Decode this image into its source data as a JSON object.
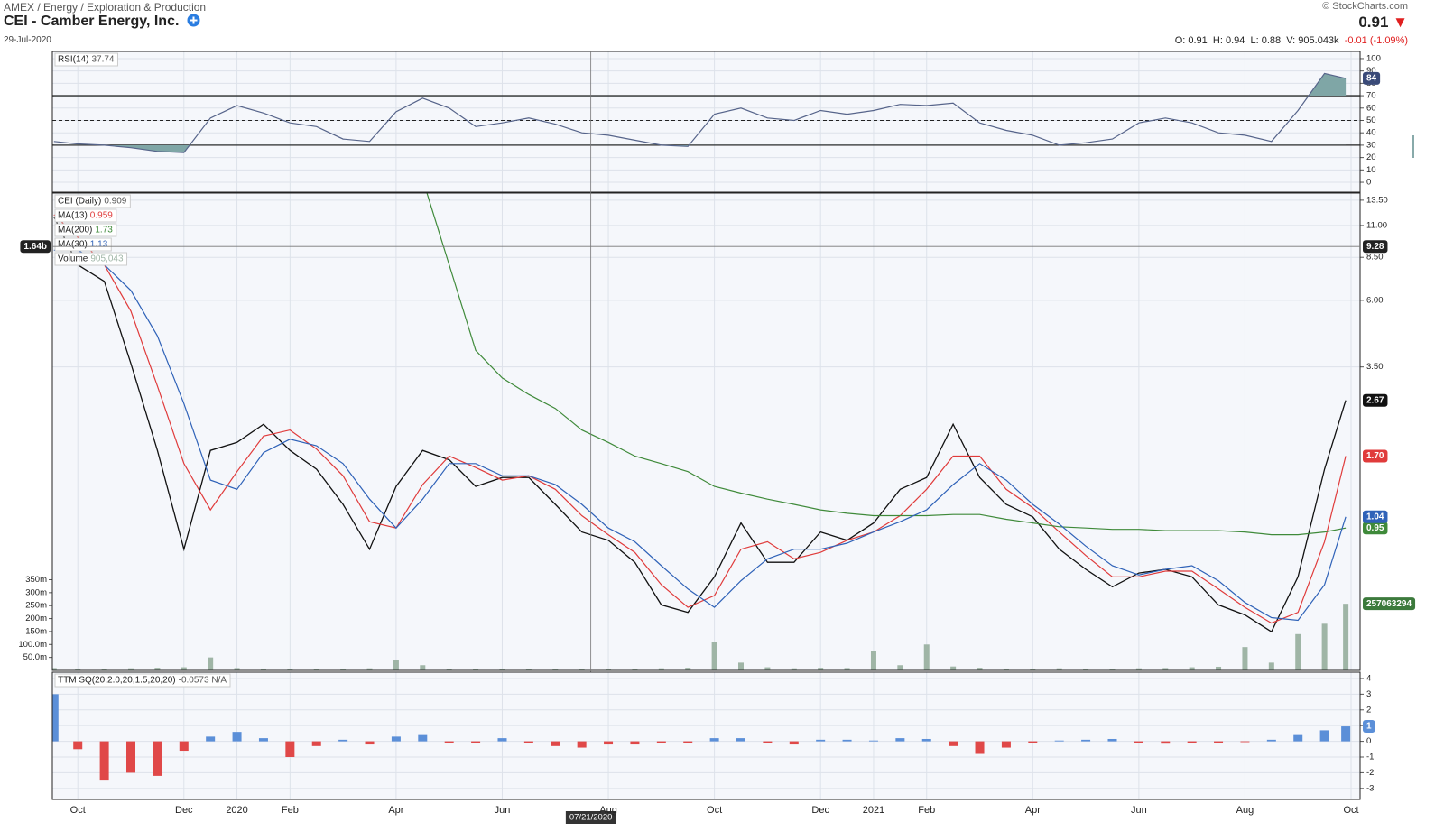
{
  "header": {
    "path": "AMEX / Energy / Exploration & Production",
    "title": "CEI - Camber Energy, Inc.",
    "date": "29-Jul-2020",
    "copyright": "© StockCharts.com",
    "last": "0.91",
    "ohlc": [
      "O: 0.91",
      "H: 0.94",
      "L: 0.88",
      "V: 905.043k"
    ],
    "change": "-0.01 (-1.09%)"
  },
  "chart_data": [
    {
      "type": "line",
      "x": [
        -0.45,
        0,
        0.5,
        1,
        1.5,
        2,
        2.5,
        3,
        3.5,
        4,
        4.5,
        5,
        5.5,
        6,
        6.5,
        7,
        7.5,
        8,
        8.5,
        9,
        9.5,
        10,
        10.5,
        11,
        11.5,
        12,
        12.5,
        13,
        13.5,
        14,
        14.5,
        15,
        15.5,
        16,
        16.5,
        17,
        17.5,
        18,
        18.5,
        19,
        19.5,
        20,
        20.5,
        21,
        21.5,
        22,
        22.5,
        23,
        23.5,
        23.9
      ],
      "xlim": [
        -0.48,
        24.17
      ],
      "ylim": [
        -8,
        105.8
      ],
      "yticks": [
        0,
        10,
        20,
        30,
        40,
        50,
        60,
        70,
        80,
        90,
        100
      ],
      "levels": [
        30,
        50,
        70
      ],
      "fill_color": "#7fa6a6",
      "series": [
        {
          "name": "RSI(14)",
          "readout": "37.74",
          "color": "#56648a",
          "last_label": "84",
          "badge_color": "#3a4a78",
          "values": [
            33,
            31,
            30,
            28,
            25,
            24,
            52,
            62,
            56,
            48,
            45,
            35,
            33,
            57,
            68,
            60,
            45,
            48,
            52,
            47,
            40,
            38,
            34,
            30,
            29,
            55,
            60,
            52,
            50,
            58,
            55,
            58,
            63,
            62,
            64,
            48,
            42,
            38,
            30,
            32,
            35,
            48,
            52,
            48,
            40,
            38,
            33,
            58,
            88,
            84
          ]
        }
      ]
    },
    {
      "type": "line",
      "log": true,
      "x": [
        -0.45,
        0,
        0.5,
        1,
        1.5,
        2,
        2.5,
        3,
        3.5,
        4,
        4.5,
        5,
        5.5,
        6,
        6.5,
        7,
        7.5,
        8,
        8.5,
        9,
        9.5,
        10,
        10.5,
        11,
        11.5,
        12,
        12.5,
        13,
        13.5,
        14,
        14.5,
        15,
        15.5,
        16,
        16.5,
        17,
        17.5,
        18,
        18.5,
        19,
        19.5,
        20,
        20.5,
        21,
        21.5,
        22,
        22.5,
        23,
        23.5,
        23.9
      ],
      "xlim": [
        -0.48,
        24.17
      ],
      "ylim": [
        0.3,
        14.3
      ],
      "yticks": [
        {
          "value": 3.5,
          "label": "3.50"
        },
        {
          "value": 6,
          "label": "6.00"
        },
        {
          "value": 8.5,
          "label": "8.50"
        },
        {
          "value": 11,
          "label": "11.00"
        },
        {
          "value": 13.5,
          "label": "13.50"
        }
      ],
      "y2lim": [
        0,
        1842000000
      ],
      "y2ticks": [
        {
          "value": 50000000,
          "label": "50.0m"
        },
        {
          "value": 100000000,
          "label": "100.0m"
        },
        {
          "value": 150000000,
          "label": "150m"
        },
        {
          "value": 200000000,
          "label": "200m"
        },
        {
          "value": 250000000,
          "label": "250m"
        },
        {
          "value": 300000000,
          "label": "300m"
        },
        {
          "value": 350000000,
          "label": "350m"
        }
      ],
      "crosshair": {
        "date": "07/21/2020",
        "x": 9.67,
        "price": 9.28,
        "volume_label": "1.64b"
      },
      "series": [
        {
          "name": "CEI (Daily)",
          "readout": "0.909",
          "color": "#111111",
          "last_label": "2.67",
          "values": [
            11.8,
            8.0,
            7.0,
            3.6,
            1.78,
            0.8,
            1.78,
            1.9,
            2.2,
            1.78,
            1.53,
            1.15,
            0.8,
            1.33,
            1.78,
            1.65,
            1.33,
            1.43,
            1.43,
            1.15,
            0.92,
            0.86,
            0.72,
            0.51,
            0.48,
            0.64,
            0.99,
            0.72,
            0.72,
            0.92,
            0.86,
            0.99,
            1.3,
            1.43,
            2.2,
            1.43,
            1.15,
            1.04,
            0.8,
            0.68,
            0.59,
            0.66,
            0.68,
            0.64,
            0.51,
            0.47,
            0.41,
            0.64,
            1.53,
            2.67
          ]
        },
        {
          "name": "MA(13)",
          "readout": "0.959",
          "color": "#e03b3b",
          "last_label": "1.70",
          "values": [
            12,
            10,
            8,
            5.5,
            3.0,
            1.6,
            1.1,
            1.5,
            2.0,
            2.1,
            1.8,
            1.45,
            1.0,
            0.95,
            1.35,
            1.7,
            1.55,
            1.4,
            1.45,
            1.3,
            1.05,
            0.9,
            0.78,
            0.6,
            0.5,
            0.55,
            0.8,
            0.85,
            0.74,
            0.78,
            0.86,
            0.92,
            1.05,
            1.3,
            1.7,
            1.7,
            1.3,
            1.12,
            0.92,
            0.76,
            0.64,
            0.64,
            0.67,
            0.67,
            0.58,
            0.5,
            0.44,
            0.48,
            0.85,
            1.7
          ]
        },
        {
          "name": "MA(200)",
          "readout": "1.73",
          "color": "#3f8a3a",
          "last_label": "0.95",
          "values": [
            null,
            null,
            null,
            null,
            null,
            null,
            null,
            null,
            null,
            null,
            null,
            null,
            null,
            null,
            16,
            8.0,
            4.0,
            3.2,
            2.8,
            2.5,
            2.1,
            1.9,
            1.7,
            1.6,
            1.5,
            1.33,
            1.26,
            1.2,
            1.15,
            1.1,
            1.07,
            1.05,
            1.05,
            1.05,
            1.06,
            1.06,
            1.02,
            0.99,
            0.96,
            0.95,
            0.94,
            0.94,
            0.93,
            0.93,
            0.93,
            0.92,
            0.9,
            0.9,
            0.92,
            0.95
          ]
        },
        {
          "name": "MA(30)",
          "readout": "1.13",
          "color": "#2f62b8",
          "last_label": "1.04",
          "values": [
            9,
            9,
            8,
            6.5,
            4.5,
            2.6,
            1.4,
            1.3,
            1.75,
            1.95,
            1.85,
            1.6,
            1.2,
            0.95,
            1.2,
            1.6,
            1.6,
            1.45,
            1.45,
            1.35,
            1.15,
            0.95,
            0.85,
            0.7,
            0.58,
            0.5,
            0.62,
            0.74,
            0.8,
            0.8,
            0.84,
            0.92,
            1.0,
            1.1,
            1.35,
            1.6,
            1.4,
            1.15,
            0.98,
            0.82,
            0.7,
            0.65,
            0.68,
            0.7,
            0.62,
            0.52,
            0.46,
            0.45,
            0.6,
            1.04
          ]
        },
        {
          "name": "Volume",
          "readout": "905,043",
          "type": "bar",
          "axis": "y2",
          "color": "#9fb5a6",
          "last_label": "257063294",
          "badge_color": "#3c7a3c",
          "values": [
            9000000,
            7000000,
            6000000,
            8000000,
            10000000,
            12000000,
            50000000,
            9000000,
            7000000,
            6000000,
            5000000,
            6000000,
            8000000,
            40000000,
            20000000,
            6000000,
            5000000,
            5000000,
            4000000,
            5000000,
            4000000,
            5000000,
            6000000,
            8000000,
            10000000,
            110000000,
            30000000,
            12000000,
            8000000,
            10000000,
            9000000,
            75000000,
            20000000,
            100000000,
            15000000,
            10000000,
            7000000,
            6000000,
            8000000,
            7000000,
            6000000,
            8000000,
            9000000,
            12000000,
            14000000,
            90000000,
            30000000,
            140000000,
            180000000,
            257063294
          ]
        }
      ]
    },
    {
      "type": "bar",
      "x": [
        -0.45,
        0,
        0.5,
        1,
        1.5,
        2,
        2.5,
        3,
        3.5,
        4,
        4.5,
        5,
        5.5,
        6,
        6.5,
        7,
        7.5,
        8,
        8.5,
        9,
        9.5,
        10,
        10.5,
        11,
        11.5,
        12,
        12.5,
        13,
        13.5,
        14,
        14.5,
        15,
        15.5,
        16,
        16.5,
        17,
        17.5,
        18,
        18.5,
        19,
        19.5,
        20,
        20.5,
        21,
        21.5,
        22,
        22.5,
        23,
        23.5,
        23.9
      ],
      "xlim": [
        -0.48,
        24.17
      ],
      "ylim": [
        -3.7,
        4.4
      ],
      "yticks": [
        -3,
        -2,
        -1,
        0,
        1,
        2,
        3,
        4
      ],
      "xticks": [
        {
          "value": 0,
          "label": "Oct"
        },
        {
          "value": 2,
          "label": "Dec"
        },
        {
          "value": 3,
          "label": "2020"
        },
        {
          "value": 4,
          "label": "Feb"
        },
        {
          "value": 6,
          "label": "Apr"
        },
        {
          "value": 8,
          "label": "Jun"
        },
        {
          "value": 10,
          "label": "Aug"
        },
        {
          "value": 12,
          "label": "Oct"
        },
        {
          "value": 14,
          "label": "Dec"
        },
        {
          "value": 15,
          "label": "2021"
        },
        {
          "value": 16,
          "label": "Feb"
        },
        {
          "value": 18,
          "label": "Apr"
        },
        {
          "value": 20,
          "label": "Jun"
        },
        {
          "value": 22,
          "label": "Aug"
        },
        {
          "value": 24,
          "label": "Oct"
        }
      ],
      "series": [
        {
          "name": "TTM SQ(20,2.0,20,1.5,20,20)",
          "readout": "-0.0573 N/A",
          "color": "#5b8fd8",
          "neg_color": "#e04848",
          "last_label": "1",
          "values": [
            3.0,
            -0.5,
            -2.5,
            -2.0,
            -2.2,
            -0.6,
            0.3,
            0.6,
            0.2,
            -1.0,
            -0.3,
            0.1,
            -0.2,
            0.3,
            0.4,
            -0.1,
            -0.1,
            0.2,
            -0.1,
            -0.3,
            -0.4,
            -0.2,
            -0.2,
            -0.1,
            -0.1,
            0.2,
            0.2,
            -0.1,
            -0.2,
            0.1,
            0.1,
            0.05,
            0.2,
            0.15,
            -0.3,
            -0.8,
            -0.4,
            -0.1,
            0.05,
            0.1,
            0.15,
            -0.1,
            -0.15,
            -0.1,
            -0.1,
            -0.05,
            0.1,
            0.4,
            0.7,
            0.95
          ]
        }
      ]
    }
  ]
}
